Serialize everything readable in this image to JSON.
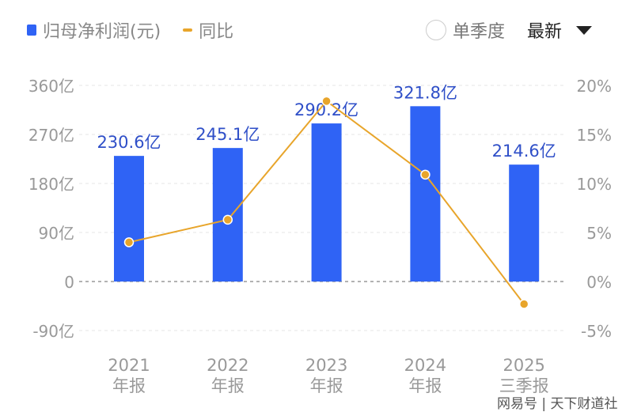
{
  "legend": {
    "bar": "归母净利润(元)",
    "line": "同比"
  },
  "controls": {
    "single_quarter": "单季度",
    "latest": "最新"
  },
  "watermark": "网易号 | 天下财道社",
  "colors": {
    "bar": "#2f63f5",
    "line": "#e8a52b"
  },
  "chart_data": {
    "type": "bar+line",
    "categories": [
      [
        "2021",
        "年报"
      ],
      [
        "2022",
        "年报"
      ],
      [
        "2023",
        "年报"
      ],
      [
        "2024",
        "年报"
      ],
      [
        "2025",
        "三季报"
      ]
    ],
    "series": [
      {
        "name": "归母净利润(元)",
        "type": "bar",
        "axis": "left",
        "values": [
          230.6,
          245.1,
          290.2,
          321.8,
          214.6
        ],
        "labels": [
          "230.6亿",
          "245.1亿",
          "290.2亿",
          "321.8亿",
          "214.6亿"
        ]
      },
      {
        "name": "同比",
        "type": "line",
        "axis": "right",
        "values": [
          4.0,
          6.3,
          18.4,
          10.9,
          -2.3
        ]
      }
    ],
    "left_axis": {
      "ticks": [
        360,
        270,
        180,
        90,
        0,
        -90
      ],
      "tick_labels": [
        "360亿",
        "270亿",
        "180亿",
        "90亿",
        "0",
        "-90亿"
      ],
      "ylim": [
        -90,
        360
      ]
    },
    "right_axis": {
      "ticks": [
        20,
        15,
        10,
        5,
        0,
        -5
      ],
      "tick_labels": [
        "20%",
        "15%",
        "10%",
        "5%",
        "0%",
        "-5%"
      ],
      "ylim": [
        -5,
        20
      ]
    },
    "grid": true
  }
}
